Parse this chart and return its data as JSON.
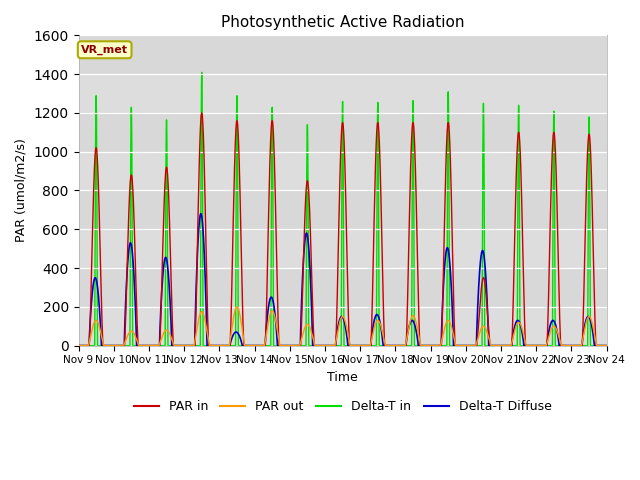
{
  "title": "Photosynthetic Active Radiation",
  "ylabel": "PAR (umol/m2/s)",
  "xlabel": "Time",
  "ylim": [
    0,
    1600
  ],
  "yticks": [
    0,
    200,
    400,
    600,
    800,
    1000,
    1200,
    1400,
    1600
  ],
  "xtick_labels": [
    "Nov 9",
    "Nov 10",
    "Nov 11",
    "Nov 12",
    "Nov 13",
    "Nov 14",
    "Nov 15",
    "Nov 16",
    "Nov 17",
    "Nov 18",
    "Nov 19",
    "Nov 20",
    "Nov 21",
    "Nov 22",
    "Nov 23",
    "Nov 24"
  ],
  "colors": {
    "par_in": "#cc0000",
    "par_out": "#ff9900",
    "delta_t_in": "#00dd00",
    "delta_t_diffuse": "#0000cc"
  },
  "bg_color": "#e8e8e8",
  "annotation_text": "VR_met",
  "annotation_bg": "#ffffcc",
  "annotation_border": "#aaaa00",
  "n_days": 15,
  "par_in_peaks": [
    1020,
    880,
    920,
    1200,
    1160,
    1160,
    850,
    1150,
    1150,
    1150,
    1150,
    350,
    1100,
    1100,
    1090
  ],
  "par_out_peaks": [
    130,
    75,
    80,
    175,
    200,
    180,
    110,
    150,
    130,
    155,
    130,
    100,
    120,
    100,
    150
  ],
  "delta_t_peaks": [
    1290,
    1230,
    1165,
    1410,
    1290,
    1230,
    1140,
    1260,
    1255,
    1265,
    1310,
    1250,
    1240,
    1210,
    1180
  ],
  "delta_diff_peaks": [
    350,
    530,
    455,
    680,
    70,
    250,
    580,
    150,
    160,
    130,
    505,
    490,
    130,
    130,
    150
  ]
}
